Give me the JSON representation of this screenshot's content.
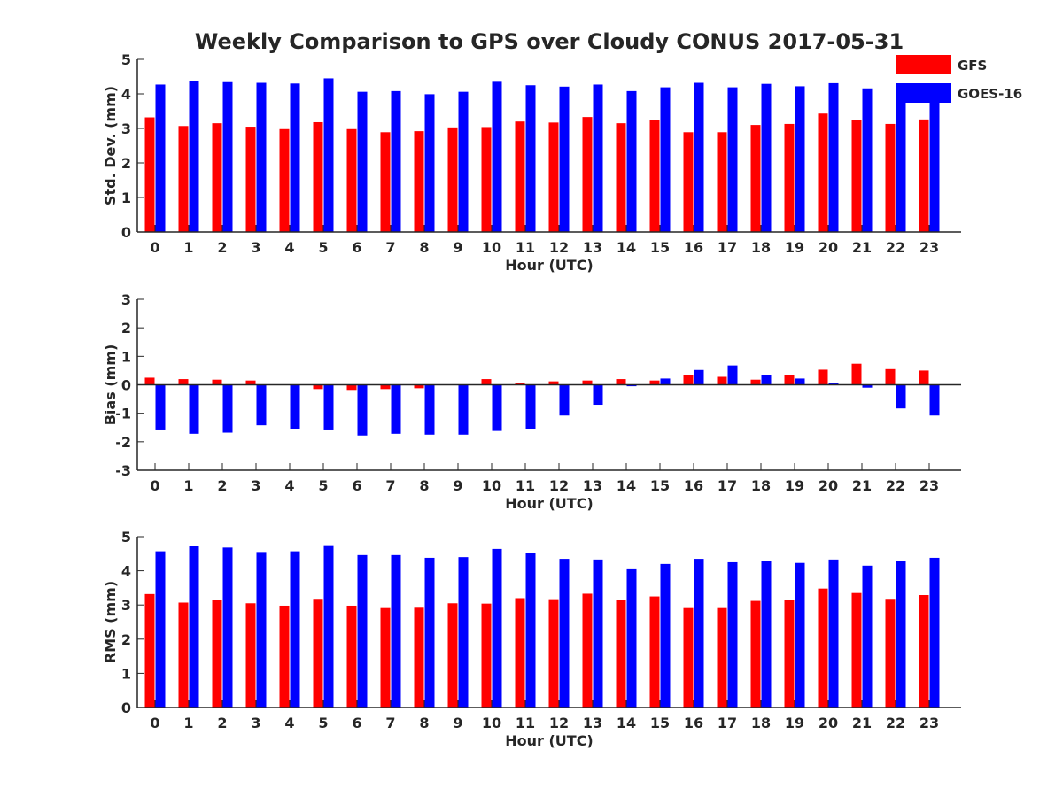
{
  "title": "Weekly Comparison to GPS over Cloudy CONUS 2017-05-31",
  "legend": {
    "placement": "top-right",
    "entries": [
      {
        "label": "GFS",
        "color": "#ff0000"
      },
      {
        "label": "GOES-16",
        "color": "#0000ff"
      }
    ]
  },
  "colors": {
    "gfs": "#ff0000",
    "goes16": "#0000ff",
    "axis": "#262626"
  },
  "chart_data": [
    {
      "type": "bar",
      "xlabel": "Hour (UTC)",
      "ylabel": "Std. Dev. (mm)",
      "ylim": [
        0,
        5
      ],
      "yticks": [
        0,
        1,
        2,
        3,
        4,
        5
      ],
      "categories": [
        "0",
        "1",
        "2",
        "3",
        "4",
        "5",
        "6",
        "7",
        "8",
        "9",
        "10",
        "11",
        "12",
        "13",
        "14",
        "15",
        "16",
        "17",
        "18",
        "19",
        "20",
        "21",
        "22",
        "23"
      ],
      "series": [
        {
          "name": "GFS",
          "values": [
            3.32,
            3.07,
            3.15,
            3.05,
            2.98,
            3.18,
            2.98,
            2.89,
            2.92,
            3.03,
            3.04,
            3.2,
            3.17,
            3.33,
            3.15,
            3.25,
            2.89,
            2.89,
            3.1,
            3.13,
            3.43,
            3.25,
            3.13,
            3.26
          ]
        },
        {
          "name": "GOES-16",
          "values": [
            4.27,
            4.37,
            4.34,
            4.32,
            4.3,
            4.45,
            4.06,
            4.08,
            3.99,
            4.06,
            4.35,
            4.25,
            4.21,
            4.27,
            4.08,
            4.19,
            4.32,
            4.19,
            4.29,
            4.22,
            4.31,
            4.16,
            4.18,
            4.02
          ]
        }
      ],
      "grid": false
    },
    {
      "type": "bar",
      "xlabel": "Hour (UTC)",
      "ylabel": "Bias (mm)",
      "ylim": [
        -3,
        3
      ],
      "yticks": [
        -3,
        -2,
        -1,
        0,
        1,
        2,
        3
      ],
      "categories": [
        "0",
        "1",
        "2",
        "3",
        "4",
        "5",
        "6",
        "7",
        "8",
        "9",
        "10",
        "11",
        "12",
        "13",
        "14",
        "15",
        "16",
        "17",
        "18",
        "19",
        "20",
        "21",
        "22",
        "23"
      ],
      "series": [
        {
          "name": "GFS",
          "values": [
            0.25,
            0.2,
            0.18,
            0.15,
            0.0,
            -0.15,
            -0.18,
            -0.15,
            -0.12,
            0.0,
            0.2,
            0.05,
            0.12,
            0.15,
            0.2,
            0.15,
            0.35,
            0.28,
            0.18,
            0.35,
            0.53,
            0.74,
            0.55,
            0.5
          ]
        },
        {
          "name": "GOES-16",
          "values": [
            -1.6,
            -1.72,
            -1.68,
            -1.42,
            -1.55,
            -1.6,
            -1.78,
            -1.72,
            -1.75,
            -1.75,
            -1.62,
            -1.55,
            -1.08,
            -0.7,
            -0.05,
            0.22,
            0.52,
            0.68,
            0.33,
            0.22,
            0.07,
            -0.1,
            -0.83,
            -1.08
          ]
        }
      ],
      "grid": false
    },
    {
      "type": "bar",
      "xlabel": "Hour (UTC)",
      "ylabel": "RMS (mm)",
      "ylim": [
        0,
        5
      ],
      "yticks": [
        0,
        1,
        2,
        3,
        4,
        5
      ],
      "categories": [
        "0",
        "1",
        "2",
        "3",
        "4",
        "5",
        "6",
        "7",
        "8",
        "9",
        "10",
        "11",
        "12",
        "13",
        "14",
        "15",
        "16",
        "17",
        "18",
        "19",
        "20",
        "21",
        "22",
        "23"
      ],
      "series": [
        {
          "name": "GFS",
          "values": [
            3.32,
            3.07,
            3.15,
            3.05,
            2.98,
            3.18,
            2.98,
            2.91,
            2.92,
            3.05,
            3.04,
            3.2,
            3.17,
            3.33,
            3.15,
            3.25,
            2.91,
            2.91,
            3.12,
            3.15,
            3.48,
            3.35,
            3.18,
            3.29
          ]
        },
        {
          "name": "GOES-16",
          "values": [
            4.57,
            4.72,
            4.68,
            4.55,
            4.57,
            4.75,
            4.46,
            4.46,
            4.38,
            4.4,
            4.64,
            4.52,
            4.35,
            4.33,
            4.07,
            4.2,
            4.35,
            4.25,
            4.3,
            4.23,
            4.33,
            4.15,
            4.28,
            4.38
          ]
        }
      ],
      "grid": false
    }
  ]
}
